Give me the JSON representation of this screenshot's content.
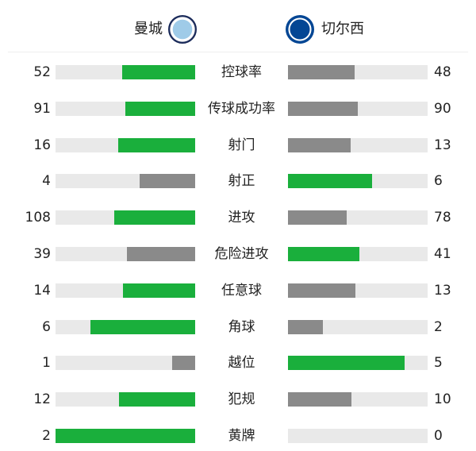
{
  "home": {
    "name": "曼城",
    "logo": "manchester-city-crest"
  },
  "away": {
    "name": "切尔西",
    "logo": "chelsea-crest"
  },
  "colors": {
    "leader": "#1aaf3c",
    "trailer": "#8a8a8a",
    "track": "#e9e9e9"
  },
  "stats": [
    {
      "label": "控球率",
      "home": 52,
      "away": 48
    },
    {
      "label": "传球成功率",
      "home": 91,
      "away": 90
    },
    {
      "label": "射门",
      "home": 16,
      "away": 13
    },
    {
      "label": "射正",
      "home": 4,
      "away": 6
    },
    {
      "label": "进攻",
      "home": 108,
      "away": 78
    },
    {
      "label": "危险进攻",
      "home": 39,
      "away": 41
    },
    {
      "label": "任意球",
      "home": 14,
      "away": 13
    },
    {
      "label": "角球",
      "home": 6,
      "away": 2
    },
    {
      "label": "越位",
      "home": 1,
      "away": 5
    },
    {
      "label": "犯规",
      "home": 12,
      "away": 10
    },
    {
      "label": "黄牌",
      "home": 2,
      "away": 0
    }
  ]
}
